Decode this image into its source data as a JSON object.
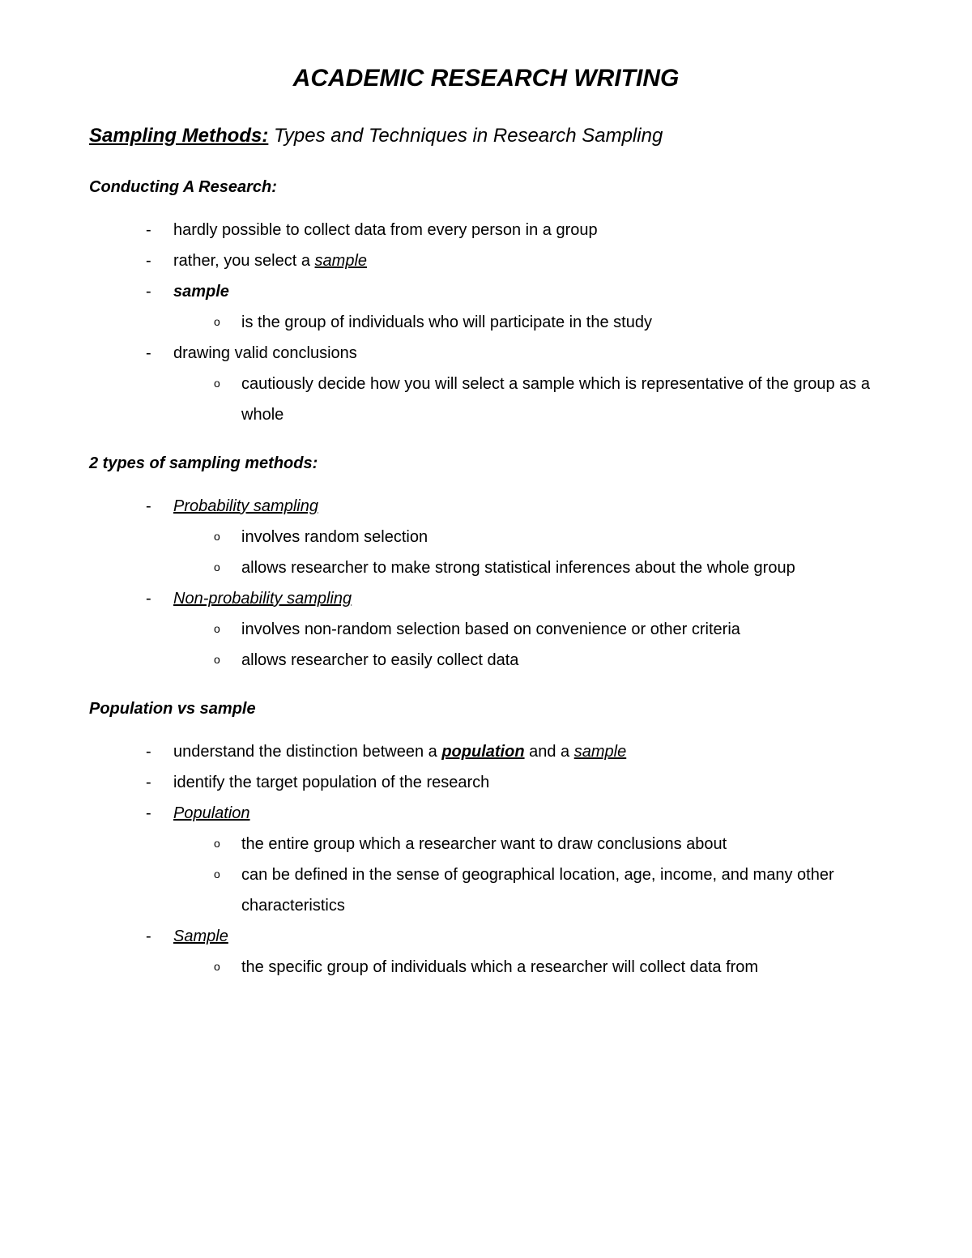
{
  "title": "ACADEMIC RESEARCH WRITING",
  "subtitle": {
    "label": "Sampling Methods:",
    "rest": " Types and Techniques in Research Sampling"
  },
  "sections": [
    {
      "heading": "Conducting A Research:",
      "items": [
        {
          "text": "hardly possible to collect data from every person in a group"
        },
        {
          "prefix": "rather, you select a ",
          "term": "sample",
          "termStyle": "ital ul"
        },
        {
          "term": "sample",
          "termStyle": "bold ital",
          "sub": [
            "is the group of individuals who will participate in the study"
          ]
        },
        {
          "text": "drawing valid conclusions",
          "sub": [
            "cautiously decide how you will select a sample which is representative of the group as a whole"
          ]
        }
      ]
    },
    {
      "heading": "2 types of sampling methods:",
      "items": [
        {
          "term": "Probability sampling",
          "termStyle": "ital ul",
          "sub": [
            "involves random selection",
            "allows researcher to make strong statistical inferences about the whole group"
          ]
        },
        {
          "term": "Non-probability sampling",
          "termStyle": "ital ul",
          "sub": [
            "involves non-random selection based on convenience or other criteria",
            "allows researcher to easily collect data"
          ]
        }
      ]
    },
    {
      "heading": "Population vs sample",
      "items": [
        {
          "segments": [
            {
              "t": "understand the distinction between a "
            },
            {
              "t": "population",
              "style": "bold ital ul"
            },
            {
              "t": " and a "
            },
            {
              "t": "sample",
              "style": "ital ul"
            }
          ]
        },
        {
          "text": "identify the target population of the research"
        },
        {
          "term": "Population",
          "termStyle": "ital ul",
          "sub": [
            "the entire group which a researcher want to draw conclusions about",
            "can be defined in the sense of geographical location, age, income, and many other characteristics"
          ]
        },
        {
          "term": "Sample",
          "termStyle": "ital ul",
          "sub": [
            "the specific group of individuals which a researcher will collect data from"
          ]
        }
      ]
    }
  ]
}
